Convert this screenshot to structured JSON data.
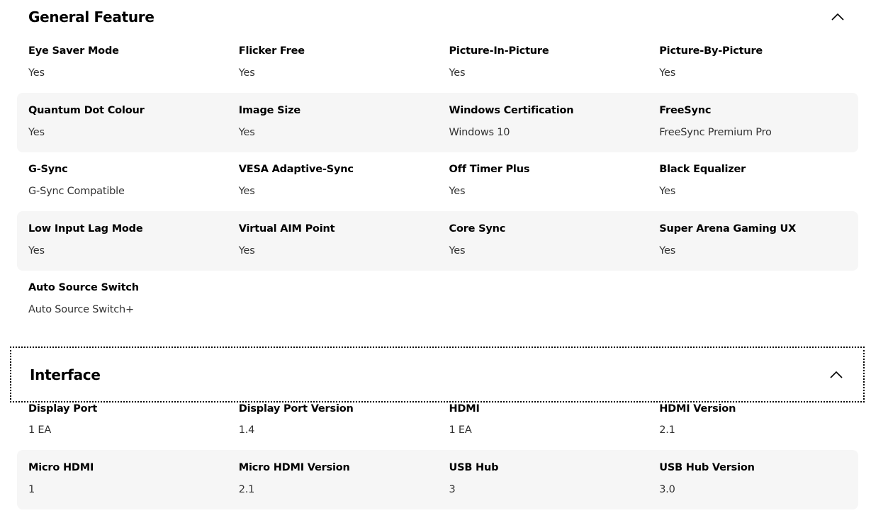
{
  "sections": [
    {
      "title": "General Feature",
      "expanded": true,
      "rows": [
        [
          [
            "Eye Saver Mode",
            "Yes"
          ],
          [
            "Flicker Free",
            "Yes"
          ],
          [
            "Picture-In-Picture",
            "Yes"
          ],
          [
            "Picture-By-Picture",
            "Yes"
          ]
        ],
        [
          [
            "Quantum Dot Colour",
            "Yes"
          ],
          [
            "Image Size",
            "Yes"
          ],
          [
            "Windows Certification",
            "Windows 10"
          ],
          [
            "FreeSync",
            "FreeSync Premium Pro"
          ]
        ],
        [
          [
            "G-Sync",
            "G-Sync Compatible"
          ],
          [
            "VESA Adaptive-Sync",
            "Yes"
          ],
          [
            "Off Timer Plus",
            "Yes"
          ],
          [
            "Black Equalizer",
            "Yes"
          ]
        ],
        [
          [
            "Low Input Lag Mode",
            "Yes"
          ],
          [
            "Virtual AIM Point",
            "Yes"
          ],
          [
            "Core Sync",
            "Yes"
          ],
          [
            "Super Arena Gaming UX",
            "Yes"
          ]
        ],
        [
          [
            "Auto Source Switch",
            "Auto Source Switch+"
          ]
        ]
      ]
    },
    {
      "title": "Interface",
      "expanded": true,
      "rows": [
        [
          [
            "Display Port",
            "1 EA"
          ],
          [
            "Display Port Version",
            "1.4"
          ],
          [
            "HDMI",
            "1 EA"
          ],
          [
            "HDMI Version",
            "2.1"
          ]
        ],
        [
          [
            "Micro HDMI",
            "1"
          ],
          [
            "Micro HDMI Version",
            "2.1"
          ],
          [
            "USB Hub",
            "3"
          ],
          [
            "USB Hub Version",
            "3.0"
          ]
        ]
      ]
    }
  ],
  "icons": {
    "collapse": "chevron-up-icon"
  },
  "colors": {
    "row_shade": "#f6f6f6",
    "focus_outline": "#000000"
  }
}
